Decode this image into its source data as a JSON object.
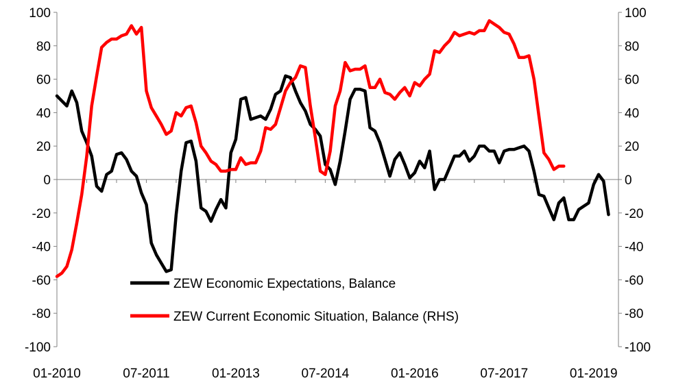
{
  "chart_data": {
    "type": "line",
    "grid": false,
    "legend_position": "bottom-center",
    "y_left": {
      "min": -100,
      "max": 100,
      "ticks": [
        100,
        80,
        60,
        40,
        20,
        0,
        -20,
        -40,
        -60,
        -80,
        -100
      ]
    },
    "y_right": {
      "min": -100,
      "max": 100,
      "ticks": [
        100,
        80,
        60,
        40,
        20,
        0,
        -20,
        -40,
        -60,
        -80,
        -100
      ]
    },
    "x_tick_labels": [
      {
        "month": 0,
        "label": "01-2010"
      },
      {
        "month": 18,
        "label": "07-2011"
      },
      {
        "month": 36,
        "label": "01-2013"
      },
      {
        "month": 54,
        "label": "07-2014"
      },
      {
        "month": 72,
        "label": "01-2016"
      },
      {
        "month": 90,
        "label": "07-2017"
      },
      {
        "month": 108,
        "label": "01-2019"
      }
    ],
    "x_range_months": [
      0,
      113
    ],
    "series": [
      {
        "name": "ZEW Economic Expectations, Balance",
        "color": "#000000",
        "axis": "left",
        "values": [
          [
            0,
            50
          ],
          [
            1,
            47
          ],
          [
            2,
            44
          ],
          [
            3,
            53
          ],
          [
            4,
            46
          ],
          [
            5,
            29
          ],
          [
            6,
            22
          ],
          [
            7,
            14
          ],
          [
            8,
            -4
          ],
          [
            9,
            -7
          ],
          [
            10,
            3
          ],
          [
            11,
            5
          ],
          [
            12,
            15
          ],
          [
            13,
            16
          ],
          [
            14,
            12
          ],
          [
            15,
            5
          ],
          [
            16,
            2
          ],
          [
            17,
            -8
          ],
          [
            18,
            -15
          ],
          [
            19,
            -38
          ],
          [
            20,
            -45
          ],
          [
            21,
            -50
          ],
          [
            22,
            -55
          ],
          [
            23,
            -54
          ],
          [
            24,
            -21
          ],
          [
            25,
            5
          ],
          [
            26,
            22
          ],
          [
            27,
            23
          ],
          [
            28,
            11
          ],
          [
            29,
            -17
          ],
          [
            30,
            -19
          ],
          [
            31,
            -25
          ],
          [
            32,
            -18
          ],
          [
            33,
            -12
          ],
          [
            34,
            -17
          ],
          [
            35,
            16
          ],
          [
            36,
            24
          ],
          [
            37,
            48
          ],
          [
            38,
            49
          ],
          [
            39,
            36
          ],
          [
            40,
            37
          ],
          [
            41,
            38
          ],
          [
            42,
            36
          ],
          [
            43,
            42
          ],
          [
            44,
            51
          ],
          [
            45,
            53
          ],
          [
            46,
            62
          ],
          [
            47,
            61
          ],
          [
            48,
            53
          ],
          [
            49,
            46
          ],
          [
            50,
            41
          ],
          [
            51,
            33
          ],
          [
            52,
            30
          ],
          [
            53,
            26
          ],
          [
            54,
            9
          ],
          [
            55,
            6
          ],
          [
            56,
            -3
          ],
          [
            57,
            11
          ],
          [
            58,
            29
          ],
          [
            59,
            48
          ],
          [
            60,
            54
          ],
          [
            61,
            54
          ],
          [
            62,
            53
          ],
          [
            63,
            31
          ],
          [
            64,
            29
          ],
          [
            65,
            22
          ],
          [
            66,
            12
          ],
          [
            67,
            2
          ],
          [
            68,
            12
          ],
          [
            69,
            16
          ],
          [
            70,
            9
          ],
          [
            71,
            1
          ],
          [
            72,
            4
          ],
          [
            73,
            11
          ],
          [
            74,
            7
          ],
          [
            75,
            17
          ],
          [
            76,
            -6
          ],
          [
            77,
            0
          ],
          [
            78,
            0
          ],
          [
            79,
            7
          ],
          [
            80,
            14
          ],
          [
            81,
            14
          ],
          [
            82,
            17
          ],
          [
            83,
            11
          ],
          [
            84,
            14
          ],
          [
            85,
            20
          ],
          [
            86,
            20
          ],
          [
            87,
            17
          ],
          [
            88,
            17
          ],
          [
            89,
            10
          ],
          [
            90,
            17
          ],
          [
            91,
            18
          ],
          [
            92,
            18
          ],
          [
            93,
            19
          ],
          [
            94,
            20
          ],
          [
            95,
            17
          ],
          [
            96,
            5
          ],
          [
            97,
            -9
          ],
          [
            98,
            -10
          ],
          [
            99,
            -17
          ],
          [
            100,
            -24
          ],
          [
            101,
            -14
          ],
          [
            102,
            -11
          ],
          [
            103,
            -24
          ],
          [
            104,
            -24
          ],
          [
            105,
            -18
          ],
          [
            106,
            -16
          ],
          [
            107,
            -14
          ],
          [
            108,
            -3
          ],
          [
            109,
            3
          ],
          [
            110,
            -1
          ],
          [
            111,
            -21
          ]
        ]
      },
      {
        "name": "ZEW Current Economic Situation, Balance (RHS)",
        "color": "#ff0000",
        "axis": "right",
        "values": [
          [
            0,
            -58
          ],
          [
            1,
            -56
          ],
          [
            2,
            -52
          ],
          [
            3,
            -42
          ],
          [
            4,
            -26
          ],
          [
            5,
            -9
          ],
          [
            6,
            14
          ],
          [
            7,
            44
          ],
          [
            8,
            62
          ],
          [
            9,
            79
          ],
          [
            10,
            82
          ],
          [
            11,
            84
          ],
          [
            12,
            84
          ],
          [
            13,
            86
          ],
          [
            14,
            87
          ],
          [
            15,
            92
          ],
          [
            16,
            87
          ],
          [
            17,
            91
          ],
          [
            18,
            53
          ],
          [
            19,
            43
          ],
          [
            20,
            38
          ],
          [
            21,
            33
          ],
          [
            22,
            27
          ],
          [
            23,
            29
          ],
          [
            24,
            40
          ],
          [
            25,
            38
          ],
          [
            26,
            43
          ],
          [
            27,
            44
          ],
          [
            28,
            34
          ],
          [
            29,
            20
          ],
          [
            30,
            16
          ],
          [
            31,
            11
          ],
          [
            32,
            9
          ],
          [
            33,
            5
          ],
          [
            34,
            5
          ],
          [
            35,
            6
          ],
          [
            36,
            6
          ],
          [
            37,
            13
          ],
          [
            38,
            9
          ],
          [
            39,
            10
          ],
          [
            40,
            10
          ],
          [
            41,
            17
          ],
          [
            42,
            31
          ],
          [
            43,
            30
          ],
          [
            44,
            33
          ],
          [
            45,
            43
          ],
          [
            46,
            53
          ],
          [
            47,
            58
          ],
          [
            48,
            61
          ],
          [
            49,
            68
          ],
          [
            50,
            67
          ],
          [
            51,
            44
          ],
          [
            52,
            25
          ],
          [
            53,
            5
          ],
          [
            54,
            3
          ],
          [
            55,
            17
          ],
          [
            56,
            44
          ],
          [
            57,
            53
          ],
          [
            58,
            70
          ],
          [
            59,
            65
          ],
          [
            60,
            66
          ],
          [
            61,
            66
          ],
          [
            62,
            68
          ],
          [
            63,
            55
          ],
          [
            64,
            55
          ],
          [
            65,
            60
          ],
          [
            66,
            52
          ],
          [
            67,
            51
          ],
          [
            68,
            48
          ],
          [
            69,
            52
          ],
          [
            70,
            55
          ],
          [
            71,
            50
          ],
          [
            72,
            58
          ],
          [
            73,
            56
          ],
          [
            74,
            60
          ],
          [
            75,
            63
          ],
          [
            76,
            77
          ],
          [
            77,
            76
          ],
          [
            78,
            80
          ],
          [
            79,
            83
          ],
          [
            80,
            88
          ],
          [
            81,
            86
          ],
          [
            82,
            87
          ],
          [
            83,
            88
          ],
          [
            84,
            87
          ],
          [
            85,
            89
          ],
          [
            86,
            89
          ],
          [
            87,
            95
          ],
          [
            88,
            93
          ],
          [
            89,
            91
          ],
          [
            90,
            88
          ],
          [
            91,
            87
          ],
          [
            92,
            81
          ],
          [
            93,
            73
          ],
          [
            94,
            73
          ],
          [
            95,
            74
          ],
          [
            96,
            60
          ],
          [
            97,
            38
          ],
          [
            98,
            16
          ],
          [
            99,
            12
          ],
          [
            100,
            6
          ],
          [
            101,
            8
          ],
          [
            102,
            8
          ]
        ]
      }
    ]
  }
}
